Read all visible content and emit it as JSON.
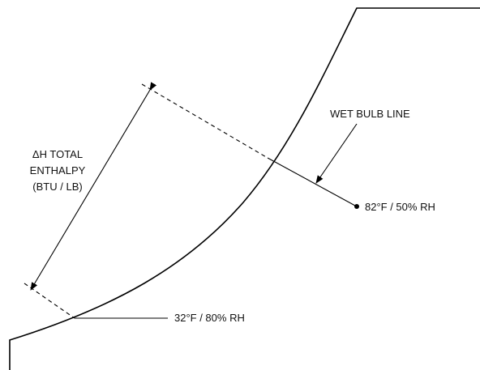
{
  "labels": {
    "wet_bulb_line": "WET BULB LINE",
    "enthalpy_line1": "ΔH TOTAL",
    "enthalpy_line2": "ENTHALPY",
    "enthalpy_line3": "(BTU / LB)",
    "point_high": "82°F / 50% RH",
    "point_low": "32°F / 80% RH"
  }
}
